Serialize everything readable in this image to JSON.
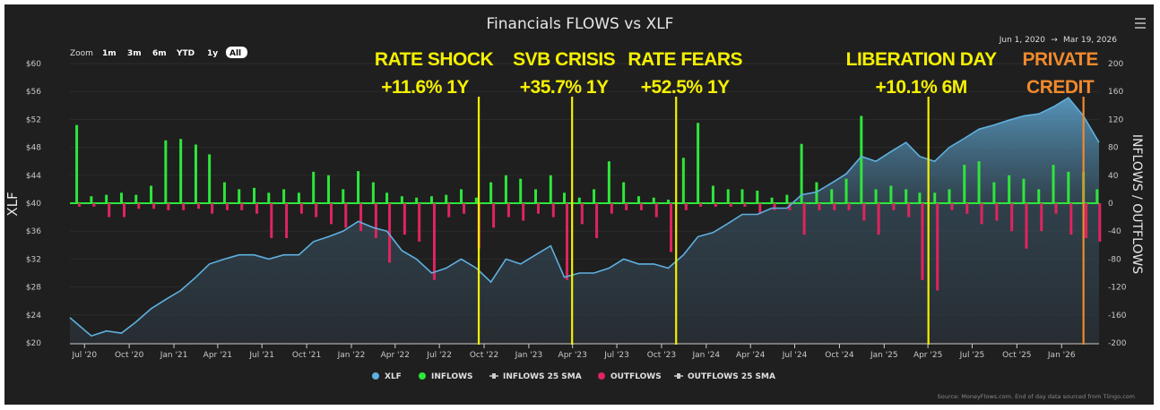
{
  "title": "Financials FLOWS vs XLF",
  "zoom": {
    "label": "Zoom",
    "buttons": [
      "1m",
      "3m",
      "6m",
      "YTD",
      "1y",
      "All"
    ],
    "active": "All"
  },
  "range": {
    "from": "Jun 1, 2020",
    "arrow": "→",
    "to": "Mar 19, 2026"
  },
  "menu_icon": "hamburger-icon",
  "source": "Source: MoneyFlows.com. End of day data sourced from Tiingo.com",
  "colors": {
    "xlf": "#5fb0e0",
    "inflows": "#2ee63a",
    "outflows": "#e0245e",
    "annotation": "#f5f000",
    "annotation_alt": "#f08a2c",
    "background": "#1f1f1f"
  },
  "chart_data": {
    "type": "line",
    "title": "Financials FLOWS vs XLF",
    "ylabel": "XLF",
    "y2label": "INFLOWS / OUTFLOWS",
    "ylim": [
      20,
      60
    ],
    "y2lim": [
      -200,
      200
    ],
    "y_ticks": [
      "$20",
      "$24",
      "$28",
      "$32",
      "$36",
      "$40",
      "$44",
      "$48",
      "$52",
      "$56",
      "$60"
    ],
    "y2_ticks": [
      "-200",
      "-160",
      "-120",
      "-80",
      "-40",
      "0",
      "40",
      "80",
      "120",
      "160",
      "200"
    ],
    "x_ticks": [
      "Jul '20",
      "Oct '20",
      "Jan '21",
      "Apr '21",
      "Jul '21",
      "Oct '21",
      "Jan '22",
      "Apr '22",
      "Jul '22",
      "Oct '22",
      "Jan '23",
      "Apr '23",
      "Jul '23",
      "Oct '23",
      "Jan '24",
      "Apr '24",
      "Jul '24",
      "Oct '24",
      "Jan '25",
      "Apr '25",
      "Jul '25",
      "Oct '25",
      "Jan '26"
    ],
    "grid": true,
    "legend_position": "bottom",
    "legend": [
      "XLF",
      "INFLOWS",
      "INFLOWS 25 SMA",
      "OUTFLOWS",
      "OUTFLOWS 25 SMA"
    ],
    "x_start": "2020-06",
    "x_end": "2026-03",
    "months": [
      "2020-06",
      "2020-07",
      "2020-08",
      "2020-09",
      "2020-10",
      "2020-11",
      "2020-12",
      "2021-01",
      "2021-02",
      "2021-03",
      "2021-04",
      "2021-05",
      "2021-06",
      "2021-07",
      "2021-08",
      "2021-09",
      "2021-10",
      "2021-11",
      "2021-12",
      "2022-01",
      "2022-02",
      "2022-03",
      "2022-04",
      "2022-05",
      "2022-06",
      "2022-07",
      "2022-08",
      "2022-09",
      "2022-10",
      "2022-11",
      "2022-12",
      "2023-01",
      "2023-02",
      "2023-03",
      "2023-04",
      "2023-05",
      "2023-06",
      "2023-07",
      "2023-08",
      "2023-09",
      "2023-10",
      "2023-11",
      "2023-12",
      "2024-01",
      "2024-02",
      "2024-03",
      "2024-04",
      "2024-05",
      "2024-06",
      "2024-07",
      "2024-08",
      "2024-09",
      "2024-10",
      "2024-11",
      "2024-12",
      "2025-01",
      "2025-02",
      "2025-03",
      "2025-04",
      "2025-05",
      "2025-06",
      "2025-07",
      "2025-08",
      "2025-09",
      "2025-10",
      "2025-11",
      "2025-12",
      "2026-01",
      "2026-02",
      "2026-03"
    ],
    "series": [
      {
        "name": "XLF",
        "values": [
          23.6,
          21,
          21.7,
          21.4,
          23,
          24.9,
          26.2,
          27.5,
          29.4,
          31.3,
          32,
          32.6,
          32.6,
          32,
          32.6,
          32.6,
          34.5,
          35.2,
          36,
          37.4,
          36.5,
          36,
          33.2,
          32,
          30,
          30.7,
          32,
          30.7,
          28.7,
          32,
          31.3,
          32.6,
          33.9,
          29.4,
          30,
          30,
          30.7,
          32,
          31.3,
          31.3,
          30.7,
          32.6,
          35.2,
          35.8,
          37.1,
          38.4,
          38.4,
          39.3,
          39.3,
          41.2,
          41.6,
          42.9,
          44.2,
          46.7,
          46,
          47.4,
          48.7,
          46.7,
          46,
          48,
          49.3,
          50.6,
          51.2,
          51.9,
          52.5,
          52.8,
          53.8,
          55.1,
          52.5,
          48.7
        ]
      },
      {
        "name": "INFLOWS",
        "values": [
          112,
          10,
          12,
          15,
          12,
          25,
          90,
          92,
          84,
          70,
          30,
          20,
          22,
          15,
          20,
          15,
          45,
          40,
          20,
          46,
          30,
          15,
          10,
          8,
          10,
          12,
          20,
          8,
          30,
          40,
          35,
          20,
          40,
          15,
          8,
          20,
          60,
          30,
          10,
          8,
          5,
          65,
          115,
          25,
          20,
          20,
          18,
          8,
          12,
          85,
          30,
          20,
          35,
          125,
          20,
          25,
          20,
          15,
          15,
          20,
          55,
          60,
          30,
          40,
          35,
          20,
          55,
          45,
          45,
          20
        ]
      },
      {
        "name": "OUTFLOWS",
        "values": [
          -5,
          -5,
          -20,
          -20,
          -8,
          -8,
          -10,
          -10,
          -8,
          -15,
          -10,
          -10,
          -15,
          -50,
          -50,
          -15,
          -20,
          -30,
          -35,
          -40,
          -50,
          -85,
          -45,
          -55,
          -110,
          -20,
          -15,
          -65,
          -35,
          -20,
          -25,
          -15,
          -20,
          -110,
          -30,
          -50,
          -15,
          -10,
          -10,
          -20,
          -70,
          -10,
          -5,
          -5,
          -5,
          -5,
          -15,
          -10,
          -10,
          -45,
          -10,
          -10,
          -10,
          -25,
          -45,
          -10,
          -20,
          -110,
          -125,
          -10,
          -15,
          -30,
          -25,
          -40,
          -65,
          -40,
          -15,
          -45,
          -50,
          -55
        ]
      }
    ],
    "annotations": [
      {
        "line1": "RATE SHOCK",
        "line2": "+11.6% 1Y",
        "date": "2022-09-20",
        "color": "#f5f000"
      },
      {
        "line1": "SVB CRISIS",
        "line2": "+35.7% 1Y",
        "date": "2023-03-31",
        "color": "#f5f000"
      },
      {
        "line1": "RATE FEARS",
        "line2": "+52.5% 1Y",
        "date": "2023-10-31",
        "color": "#f5f000"
      },
      {
        "line1": "LIBERATION DAY",
        "line2": "+10.1% 6M",
        "date": "2025-04-02",
        "color": "#f5f000"
      },
      {
        "line1": "PRIVATE",
        "line2": "CREDIT",
        "date": "2026-02-15",
        "color": "#f08a2c"
      }
    ]
  }
}
